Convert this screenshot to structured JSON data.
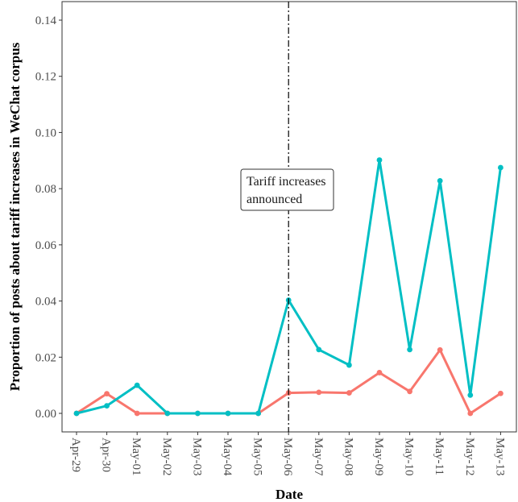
{
  "chart_data": {
    "type": "line",
    "xlabel": "Date",
    "ylabel": "Proportion of posts about tariff increases in WeChat corpus",
    "categories": [
      "Apr-29",
      "Apr-30",
      "May-01",
      "May-02",
      "May-03",
      "May-04",
      "May-05",
      "May-06",
      "May-07",
      "May-08",
      "May-09",
      "May-10",
      "May-11",
      "May-12",
      "May-13"
    ],
    "ylim": [
      0,
      0.145
    ],
    "yticks": [
      0.0,
      0.02,
      0.04,
      0.06,
      0.08,
      0.1,
      0.12,
      0.14
    ],
    "ytick_labels": [
      "0.00",
      "0.02",
      "0.04",
      "0.06",
      "0.08",
      "0.10",
      "0.12",
      "0.14"
    ],
    "grid": false,
    "series": [
      {
        "color": "#F8766D",
        "values": [
          0.0,
          0.007,
          0.0,
          0.0,
          0.0,
          0.0,
          0.0,
          0.0073,
          0.0075,
          0.0073,
          0.0145,
          0.0078,
          0.0226,
          0.0,
          0.0071
        ]
      },
      {
        "color": "#00BFC4",
        "values": [
          0.0,
          0.0027,
          0.01,
          0.0,
          0.0,
          0.0,
          0.0,
          0.0403,
          0.0227,
          0.0172,
          0.0902,
          0.0227,
          0.0828,
          0.0065,
          0.0875
        ]
      }
    ],
    "annotations": [
      {
        "x_index": 7,
        "line_style": "dash-dot",
        "text_lines": [
          "Tariff increases",
          "announced"
        ]
      }
    ]
  }
}
